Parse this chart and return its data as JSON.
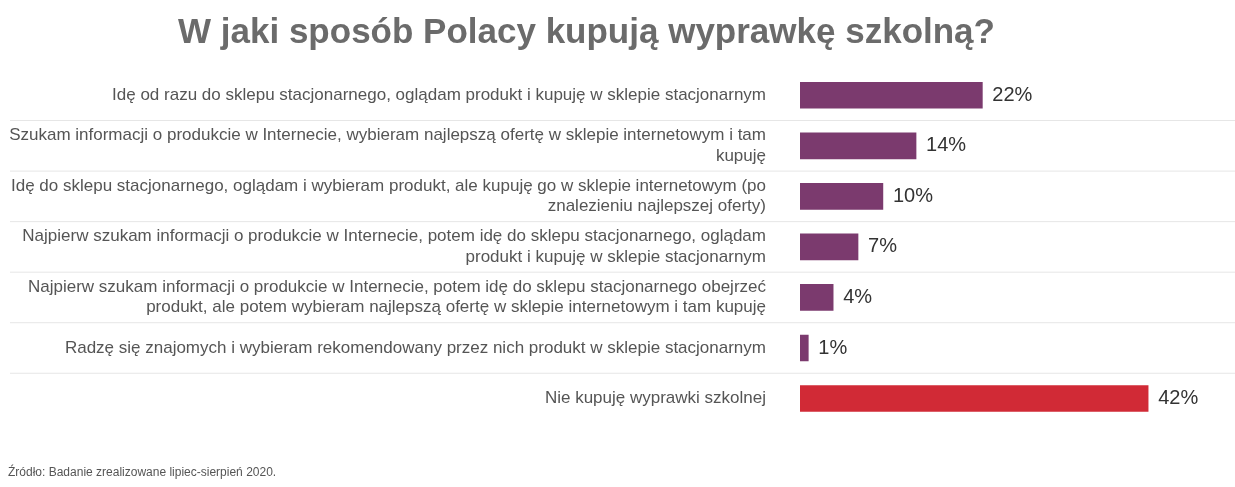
{
  "chart_data": {
    "type": "bar",
    "orientation": "horizontal",
    "title": "W jaki sposób Polacy kupują wyprawkę szkolną?",
    "categories": [
      "Idę od razu do sklepu stacjonarnego, oglądam produkt i kupuję w sklepie stacjonarnym",
      "Szukam informacji o produkcie w Internecie, wybieram najlepszą ofertę w sklepie internetowym i tam kupuję",
      "Idę do sklepu stacjonarnego, oglądam i wybieram produkt, ale kupuję go w sklepie internetowym (po znalezieniu najlepszej oferty)",
      "Najpierw szukam informacji o produkcie w Internecie, potem idę do sklepu stacjonarnego, oglądam produkt i kupuję w sklepie stacjonarnym",
      "Najpierw szukam informacji o produkcie w Internecie, potem idę do sklepu stacjonarnego obejrzeć produkt, ale potem wybieram najlepszą ofertę w sklepie internetowym i tam kupuję",
      "Radzę się znajomych i wybieram rekomendowany przez nich produkt w sklepie stacjonarnym",
      "Nie kupuję wyprawki szkolnej"
    ],
    "values": [
      22,
      14,
      10,
      7,
      4,
      1,
      42
    ],
    "colors": [
      "#7b3a6e",
      "#7b3a6e",
      "#7b3a6e",
      "#7b3a6e",
      "#7b3a6e",
      "#7b3a6e",
      "#d12a36"
    ],
    "value_labels": [
      "22%",
      "14%",
      "10%",
      "7%",
      "4%",
      "1%",
      "42%"
    ],
    "grid": "y",
    "legend": false,
    "tick_labels": "y",
    "annotations": [
      "Źródło: Badanie zrealizowane lipiec-sierpień 2020."
    ]
  }
}
